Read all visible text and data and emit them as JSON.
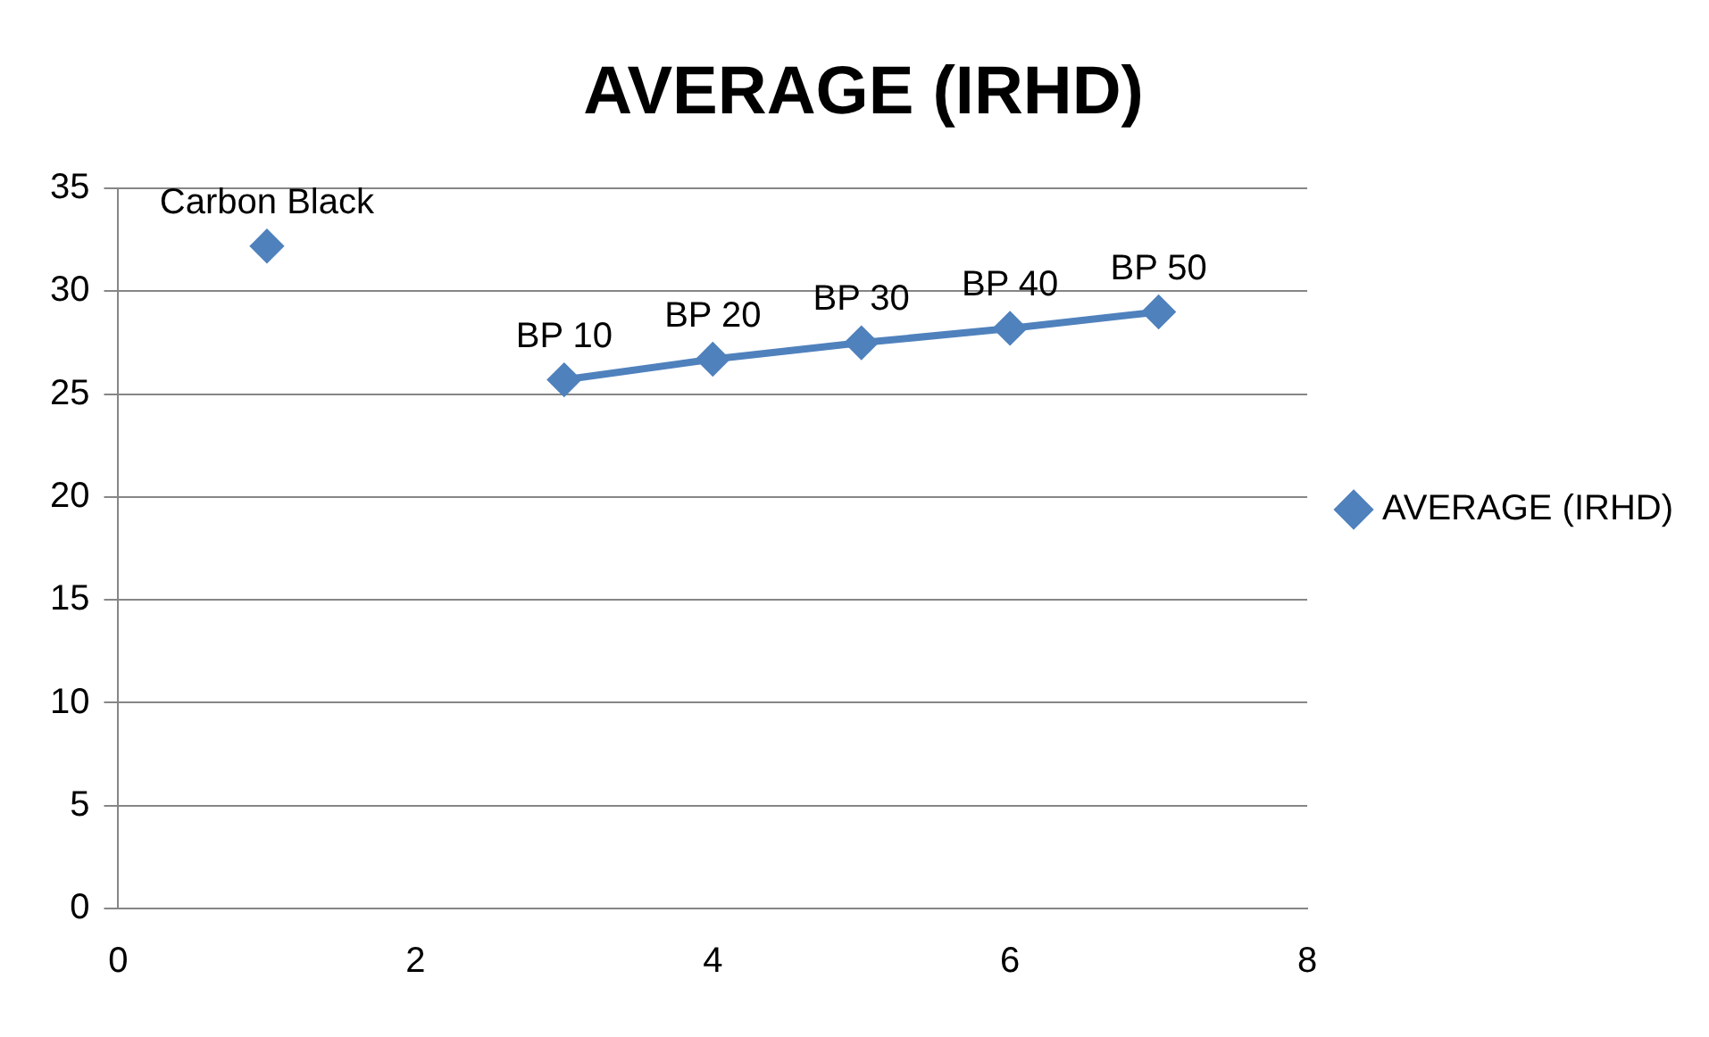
{
  "chart_data": {
    "type": "line",
    "title": "AVERAGE (IRHD)",
    "x": [
      1,
      2,
      3,
      4,
      5,
      6,
      7
    ],
    "series": [
      {
        "name": "AVERAGE (IRHD)",
        "color": "#4f81bd",
        "values": [
          32.2,
          null,
          25.7,
          26.7,
          27.5,
          28.2,
          29.0
        ]
      }
    ],
    "xlim": [
      0,
      8
    ],
    "xticks": [
      0,
      2,
      4,
      6,
      8
    ],
    "ylim": [
      0,
      35
    ],
    "yticks": [
      0,
      5,
      10,
      15,
      20,
      25,
      30,
      35
    ],
    "grid": "y",
    "legend": "right",
    "marker": "diamond",
    "line_style": "solid",
    "annotations": [
      {
        "text": "Carbon Black",
        "x": 1,
        "y": 32.2
      },
      {
        "text": "BP 10",
        "x": 3,
        "y": 25.7
      },
      {
        "text": "BP 20",
        "x": 4,
        "y": 26.7
      },
      {
        "text": "BP 30",
        "x": 5,
        "y": 27.5
      },
      {
        "text": "BP 40",
        "x": 6,
        "y": 28.2
      },
      {
        "text": "BP 50",
        "x": 7,
        "y": 29.0
      }
    ]
  }
}
